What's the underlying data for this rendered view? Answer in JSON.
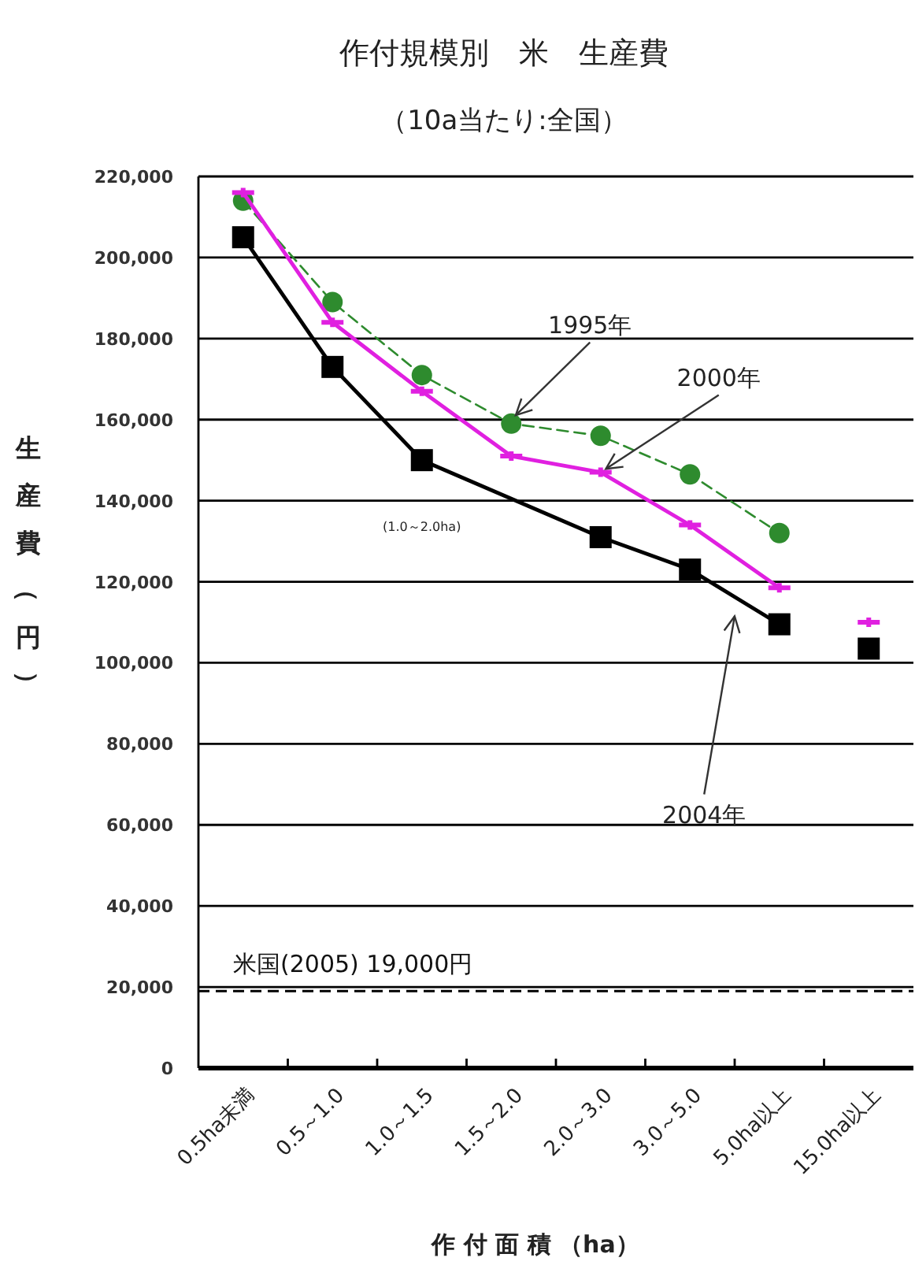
{
  "chart_data": {
    "type": "line",
    "title": "作付規模別　米　生産費",
    "subtitle": "（10a当たり:全国）",
    "xlabel": "作 付 面 積 （ha）",
    "ylabel": "生産費（円）",
    "categories": [
      "0.5ha未満",
      "0.5～1.0",
      "1.0～1.5",
      "1.5～2.0",
      "2.0～3.0",
      "3.0～5.0",
      "5.0ha以上",
      "15.0ha以上"
    ],
    "series": [
      {
        "type": "line",
        "color": "#2e8b2e",
        "line_style": "dashed",
        "marker": "circle",
        "values": [
          214000,
          189000,
          171000,
          159000,
          156000,
          146500,
          132000,
          null
        ]
      },
      {
        "type": "line",
        "color": "#e020e0",
        "line_style": "solid",
        "marker": "cross",
        "values": [
          216000,
          184000,
          167000,
          151000,
          147000,
          134000,
          118500,
          null
        ]
      },
      {
        "type": "line",
        "color": "#000000",
        "line_style": "solid",
        "marker": "square",
        "values": [
          205000,
          173000,
          150000,
          null,
          131000,
          123000,
          109500,
          null
        ]
      },
      {
        "type": "scatter",
        "color": "#e020e0",
        "marker": "cross",
        "values": [
          null,
          null,
          null,
          null,
          null,
          null,
          null,
          110000
        ]
      },
      {
        "type": "scatter",
        "color": "#000000",
        "marker": "square",
        "values": [
          null,
          null,
          null,
          null,
          null,
          null,
          null,
          103500
        ]
      }
    ],
    "ylim": [
      0,
      220000
    ],
    "yticks": [
      0,
      {
        "value": 20000,
        "label": "20,000"
      },
      {
        "value": 40000,
        "label": "40,000"
      },
      {
        "value": 60000,
        "label": "60,000"
      },
      {
        "value": 80000,
        "label": "80,000"
      },
      {
        "value": 100000,
        "label": "100,000"
      },
      {
        "value": 120000,
        "label": "120,000"
      },
      {
        "value": 140000,
        "label": "140,000"
      },
      {
        "value": 160000,
        "label": "160,000"
      },
      {
        "value": 180000,
        "label": "180,000"
      },
      {
        "value": 200000,
        "label": "200,000"
      },
      {
        "value": 220000,
        "label": "220,000"
      }
    ],
    "grid": "y",
    "ref_lines": [
      {
        "axis": "y",
        "value": 19000,
        "label": "米国(2005)  19,000円",
        "color": "#000000",
        "line_style": "dashed"
      }
    ],
    "annotations": [
      {
        "text": "1995年",
        "x": "1.5～2.0",
        "y": 160000
      },
      {
        "text": "2000年",
        "x": "2.0～3.0",
        "y": 147000
      },
      "2004年",
      "(1.0～2.0ha)"
    ]
  }
}
